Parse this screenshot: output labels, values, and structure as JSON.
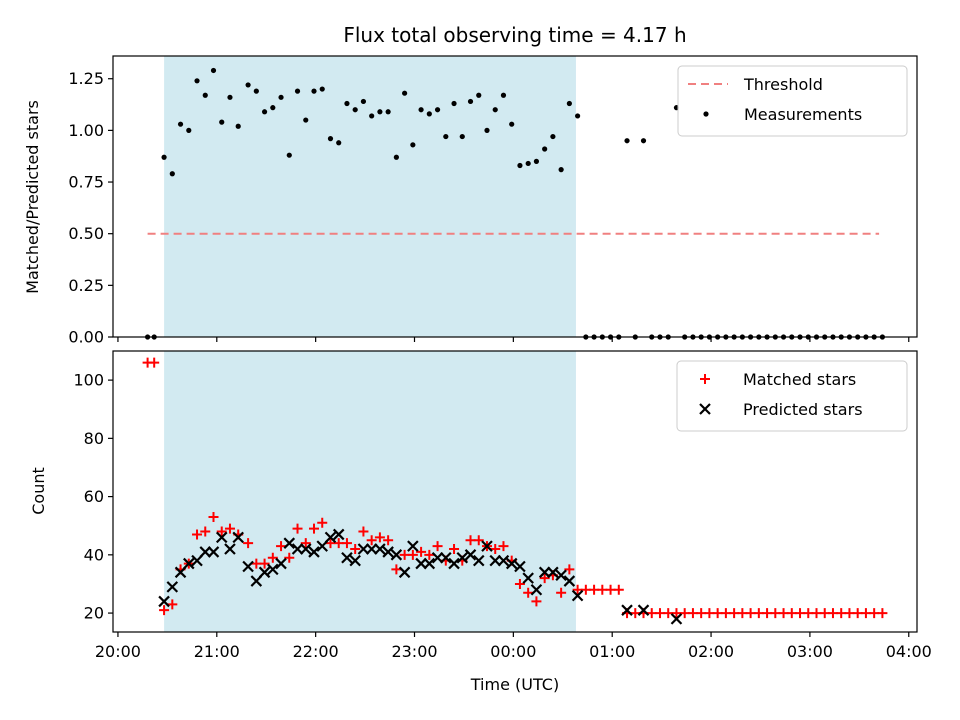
{
  "chart_data": [
    {
      "type": "scatter",
      "title": "Flux total observing time = 4.17 h",
      "xlabel": "",
      "ylabel": "Matched/Predicted stars",
      "ylim": [
        0,
        1.36
      ],
      "xlim": [
        "19:57",
        "04:05"
      ],
      "yticks": [
        "0.00",
        "0.25",
        "0.50",
        "0.75",
        "1.00",
        "1.25"
      ],
      "shaded_interval": [
        "20:28",
        "00:38"
      ],
      "shade_color": "#add8e6",
      "legend_position": "top-right",
      "threshold": {
        "name": "Threshold",
        "value": 0.5,
        "x_range": [
          "20:18",
          "03:42"
        ],
        "color": "#f08080",
        "style": "dashed"
      },
      "series": [
        {
          "name": "Measurements",
          "marker": "dot",
          "color": "#000000",
          "points": [
            [
              "20:18",
              0.0
            ],
            [
              "20:22",
              0.0
            ],
            [
              "20:28",
              0.87
            ],
            [
              "20:33",
              0.79
            ],
            [
              "20:38",
              1.03
            ],
            [
              "20:43",
              1.0
            ],
            [
              "20:48",
              1.24
            ],
            [
              "20:53",
              1.17
            ],
            [
              "20:58",
              1.29
            ],
            [
              "21:03",
              1.04
            ],
            [
              "21:08",
              1.16
            ],
            [
              "21:13",
              1.02
            ],
            [
              "21:19",
              1.22
            ],
            [
              "21:24",
              1.19
            ],
            [
              "21:29",
              1.09
            ],
            [
              "21:34",
              1.11
            ],
            [
              "21:39",
              1.16
            ],
            [
              "21:44",
              0.88
            ],
            [
              "21:49",
              1.19
            ],
            [
              "21:54",
              1.05
            ],
            [
              "21:59",
              1.19
            ],
            [
              "22:04",
              1.2
            ],
            [
              "22:09",
              0.96
            ],
            [
              "22:14",
              0.94
            ],
            [
              "22:19",
              1.13
            ],
            [
              "22:24",
              1.1
            ],
            [
              "22:29",
              1.14
            ],
            [
              "22:34",
              1.07
            ],
            [
              "22:39",
              1.09
            ],
            [
              "22:44",
              1.09
            ],
            [
              "22:49",
              0.87
            ],
            [
              "22:54",
              1.18
            ],
            [
              "22:59",
              0.93
            ],
            [
              "23:04",
              1.1
            ],
            [
              "23:09",
              1.08
            ],
            [
              "23:14",
              1.1
            ],
            [
              "23:19",
              0.97
            ],
            [
              "23:24",
              1.13
            ],
            [
              "23:29",
              0.97
            ],
            [
              "23:34",
              1.14
            ],
            [
              "23:39",
              1.17
            ],
            [
              "23:44",
              1.0
            ],
            [
              "23:49",
              1.1
            ],
            [
              "23:54",
              1.17
            ],
            [
              "23:59",
              1.03
            ],
            [
              "00:04",
              0.83
            ],
            [
              "00:09",
              0.84
            ],
            [
              "00:14",
              0.85
            ],
            [
              "00:19",
              0.91
            ],
            [
              "00:24",
              0.97
            ],
            [
              "00:29",
              0.81
            ],
            [
              "00:34",
              1.13
            ],
            [
              "00:39",
              1.07
            ],
            [
              "00:44",
              0.0
            ],
            [
              "00:49",
              0.0
            ],
            [
              "00:54",
              0.0
            ],
            [
              "00:59",
              0.0
            ],
            [
              "01:04",
              0.0
            ],
            [
              "01:09",
              0.95
            ],
            [
              "01:14",
              0.0
            ],
            [
              "01:19",
              0.95
            ],
            [
              "01:24",
              0.0
            ],
            [
              "01:29",
              0.0
            ],
            [
              "01:34",
              0.0
            ],
            [
              "01:39",
              1.11
            ],
            [
              "01:44",
              0.0
            ],
            [
              "01:49",
              0.0
            ],
            [
              "01:54",
              0.0
            ],
            [
              "01:59",
              0.0
            ],
            [
              "02:04",
              0.0
            ],
            [
              "02:09",
              0.0
            ],
            [
              "02:14",
              0.0
            ],
            [
              "02:19",
              0.0
            ],
            [
              "02:24",
              0.0
            ],
            [
              "02:29",
              0.0
            ],
            [
              "02:34",
              0.0
            ],
            [
              "02:39",
              0.0
            ],
            [
              "02:44",
              0.0
            ],
            [
              "02:49",
              0.0
            ],
            [
              "02:54",
              0.0
            ],
            [
              "02:59",
              0.0
            ],
            [
              "03:04",
              0.0
            ],
            [
              "03:09",
              0.0
            ],
            [
              "03:14",
              0.0
            ],
            [
              "03:19",
              0.0
            ],
            [
              "03:24",
              0.0
            ],
            [
              "03:29",
              0.0
            ],
            [
              "03:34",
              0.0
            ],
            [
              "03:39",
              0.0
            ],
            [
              "03:44",
              0.0
            ]
          ]
        }
      ]
    },
    {
      "type": "scatter",
      "title": "",
      "xlabel": "Time (UTC)",
      "ylabel": "Count",
      "ylim": [
        13.5,
        110
      ],
      "xlim": [
        "19:57",
        "04:05"
      ],
      "yticks": [
        "20",
        "40",
        "60",
        "80",
        "100"
      ],
      "xticks": [
        "20:00",
        "21:00",
        "22:00",
        "23:00",
        "00:00",
        "01:00",
        "02:00",
        "03:00",
        "04:00"
      ],
      "shaded_interval": [
        "20:28",
        "00:38"
      ],
      "shade_color": "#add8e6",
      "legend_position": "top-right",
      "series": [
        {
          "name": "Matched stars",
          "marker": "plus",
          "color": "#ff0000",
          "points": [
            [
              "20:18",
              106
            ],
            [
              "20:22",
              106
            ],
            [
              "20:28",
              21
            ],
            [
              "20:33",
              23
            ],
            [
              "20:38",
              35
            ],
            [
              "20:43",
              37
            ],
            [
              "20:48",
              47
            ],
            [
              "20:53",
              48
            ],
            [
              "20:58",
              53
            ],
            [
              "21:03",
              48
            ],
            [
              "21:08",
              49
            ],
            [
              "21:13",
              47
            ],
            [
              "21:19",
              44
            ],
            [
              "21:24",
              37
            ],
            [
              "21:29",
              37
            ],
            [
              "21:34",
              39
            ],
            [
              "21:39",
              43
            ],
            [
              "21:44",
              39
            ],
            [
              "21:49",
              49
            ],
            [
              "21:54",
              44
            ],
            [
              "21:59",
              49
            ],
            [
              "22:04",
              51
            ],
            [
              "22:09",
              44
            ],
            [
              "22:14",
              44
            ],
            [
              "22:19",
              44
            ],
            [
              "22:24",
              42
            ],
            [
              "22:29",
              48
            ],
            [
              "22:34",
              45
            ],
            [
              "22:39",
              46
            ],
            [
              "22:44",
              45
            ],
            [
              "22:49",
              35
            ],
            [
              "22:54",
              40
            ],
            [
              "22:59",
              40
            ],
            [
              "23:04",
              41
            ],
            [
              "23:09",
              40
            ],
            [
              "23:14",
              43
            ],
            [
              "23:19",
              38
            ],
            [
              "23:24",
              42
            ],
            [
              "23:29",
              38
            ],
            [
              "23:34",
              45
            ],
            [
              "23:39",
              45
            ],
            [
              "23:44",
              43
            ],
            [
              "23:49",
              42
            ],
            [
              "23:54",
              43
            ],
            [
              "23:59",
              38
            ],
            [
              "00:04",
              30
            ],
            [
              "00:09",
              27
            ],
            [
              "00:14",
              24
            ],
            [
              "00:19",
              32
            ],
            [
              "00:24",
              33
            ],
            [
              "00:29",
              27
            ],
            [
              "00:34",
              35
            ],
            [
              "00:39",
              28
            ],
            [
              "00:44",
              28
            ],
            [
              "00:49",
              28
            ],
            [
              "00:54",
              28
            ],
            [
              "00:59",
              28
            ],
            [
              "01:04",
              28
            ],
            [
              "01:09",
              20
            ],
            [
              "01:14",
              20
            ],
            [
              "01:19",
              20
            ],
            [
              "01:24",
              20
            ],
            [
              "01:29",
              20
            ],
            [
              "01:34",
              20
            ],
            [
              "01:39",
              20
            ],
            [
              "01:44",
              20
            ],
            [
              "01:49",
              20
            ],
            [
              "01:54",
              20
            ],
            [
              "01:59",
              20
            ],
            [
              "02:04",
              20
            ],
            [
              "02:09",
              20
            ],
            [
              "02:14",
              20
            ],
            [
              "02:19",
              20
            ],
            [
              "02:24",
              20
            ],
            [
              "02:29",
              20
            ],
            [
              "02:34",
              20
            ],
            [
              "02:39",
              20
            ],
            [
              "02:44",
              20
            ],
            [
              "02:49",
              20
            ],
            [
              "02:54",
              20
            ],
            [
              "02:59",
              20
            ],
            [
              "03:04",
              20
            ],
            [
              "03:09",
              20
            ],
            [
              "03:14",
              20
            ],
            [
              "03:19",
              20
            ],
            [
              "03:24",
              20
            ],
            [
              "03:29",
              20
            ],
            [
              "03:34",
              20
            ],
            [
              "03:39",
              20
            ],
            [
              "03:44",
              20
            ]
          ]
        },
        {
          "name": "Predicted stars",
          "marker": "x",
          "color": "#000000",
          "points": [
            [
              "20:28",
              24
            ],
            [
              "20:33",
              29
            ],
            [
              "20:38",
              34
            ],
            [
              "20:43",
              37
            ],
            [
              "20:48",
              38
            ],
            [
              "20:53",
              41
            ],
            [
              "20:58",
              41
            ],
            [
              "21:03",
              46
            ],
            [
              "21:08",
              42
            ],
            [
              "21:13",
              46
            ],
            [
              "21:19",
              36
            ],
            [
              "21:24",
              31
            ],
            [
              "21:29",
              34
            ],
            [
              "21:34",
              35
            ],
            [
              "21:39",
              37
            ],
            [
              "21:44",
              44
            ],
            [
              "21:49",
              42
            ],
            [
              "21:54",
              42
            ],
            [
              "21:59",
              41
            ],
            [
              "22:04",
              43
            ],
            [
              "22:09",
              46
            ],
            [
              "22:14",
              47
            ],
            [
              "22:19",
              39
            ],
            [
              "22:24",
              38
            ],
            [
              "22:29",
              42
            ],
            [
              "22:34",
              42
            ],
            [
              "22:39",
              42
            ],
            [
              "22:44",
              41
            ],
            [
              "22:49",
              40
            ],
            [
              "22:54",
              34
            ],
            [
              "22:59",
              43
            ],
            [
              "23:04",
              37
            ],
            [
              "23:09",
              37
            ],
            [
              "23:14",
              39
            ],
            [
              "23:19",
              39
            ],
            [
              "23:24",
              37
            ],
            [
              "23:29",
              39
            ],
            [
              "23:34",
              40
            ],
            [
              "23:39",
              38
            ],
            [
              "23:44",
              43
            ],
            [
              "23:49",
              38
            ],
            [
              "23:54",
              38
            ],
            [
              "23:59",
              37
            ],
            [
              "00:04",
              36
            ],
            [
              "00:09",
              32
            ],
            [
              "00:14",
              28
            ],
            [
              "00:19",
              34
            ],
            [
              "00:24",
              34
            ],
            [
              "00:29",
              33
            ],
            [
              "00:34",
              31
            ],
            [
              "00:39",
              26
            ],
            [
              "01:09",
              21
            ],
            [
              "01:19",
              21
            ],
            [
              "01:39",
              18
            ]
          ]
        }
      ]
    }
  ]
}
